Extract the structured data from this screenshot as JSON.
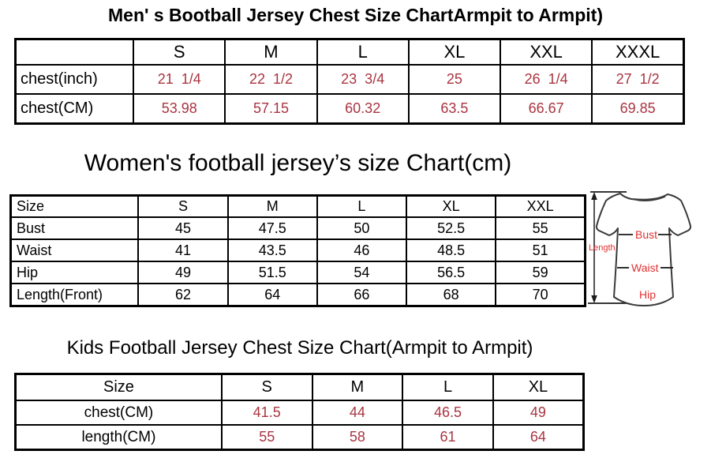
{
  "colors": {
    "table_border_color": "#000000",
    "men_value_color": "#a93440",
    "kids_value_color": "#a93440",
    "diagram_label_color": "#e03131",
    "title_text_color": "#000000"
  },
  "men_table": {
    "title": "Men' s Bootball Jersey Chest Size ChartArmpit to Armpit)",
    "columns": [
      "",
      "S",
      "M",
      "L",
      "XL",
      "XXL",
      "XXXL"
    ],
    "rows": [
      {
        "label": "chest(inch)",
        "values": [
          "21  1/4",
          "22  1/2",
          "23  3/4",
          "25",
          "26  1/4",
          "27  1/2"
        ]
      },
      {
        "label": "chest(CM)",
        "values": [
          "53.98",
          "57.15",
          "60.32",
          "63.5",
          "66.67",
          "69.85"
        ]
      }
    ]
  },
  "women_table": {
    "title": "Women's football jersey’s size Chart(cm)",
    "columns": [
      "Size",
      "S",
      "M",
      "L",
      "XL",
      "XXL"
    ],
    "rows": [
      {
        "label": "Bust",
        "values": [
          "45",
          "47.5",
          "50",
          "52.5",
          "55"
        ]
      },
      {
        "label": "Waist",
        "values": [
          "41",
          "43.5",
          "46",
          "48.5",
          "51"
        ]
      },
      {
        "label": "Hip",
        "values": [
          "49",
          "51.5",
          "54",
          "56.5",
          "59"
        ]
      },
      {
        "label": "Length(Front)",
        "values": [
          "62",
          "64",
          "66",
          "68",
          "70"
        ]
      }
    ]
  },
  "kids_table": {
    "title": "Kids Football Jersey Chest Size Chart(Armpit to Armpit)",
    "columns": [
      "Size",
      "S",
      "M",
      "L",
      "XL"
    ],
    "rows": [
      {
        "label": "chest(CM)",
        "values": [
          "41.5",
          "44",
          "46.5",
          "49"
        ]
      },
      {
        "label": "length(CM)",
        "values": [
          "55",
          "58",
          "61",
          "64"
        ]
      }
    ]
  },
  "diagram": {
    "length_label": "Length",
    "bust_label": "Bust",
    "waist_label": "Waist",
    "hip_label": "Hip"
  }
}
